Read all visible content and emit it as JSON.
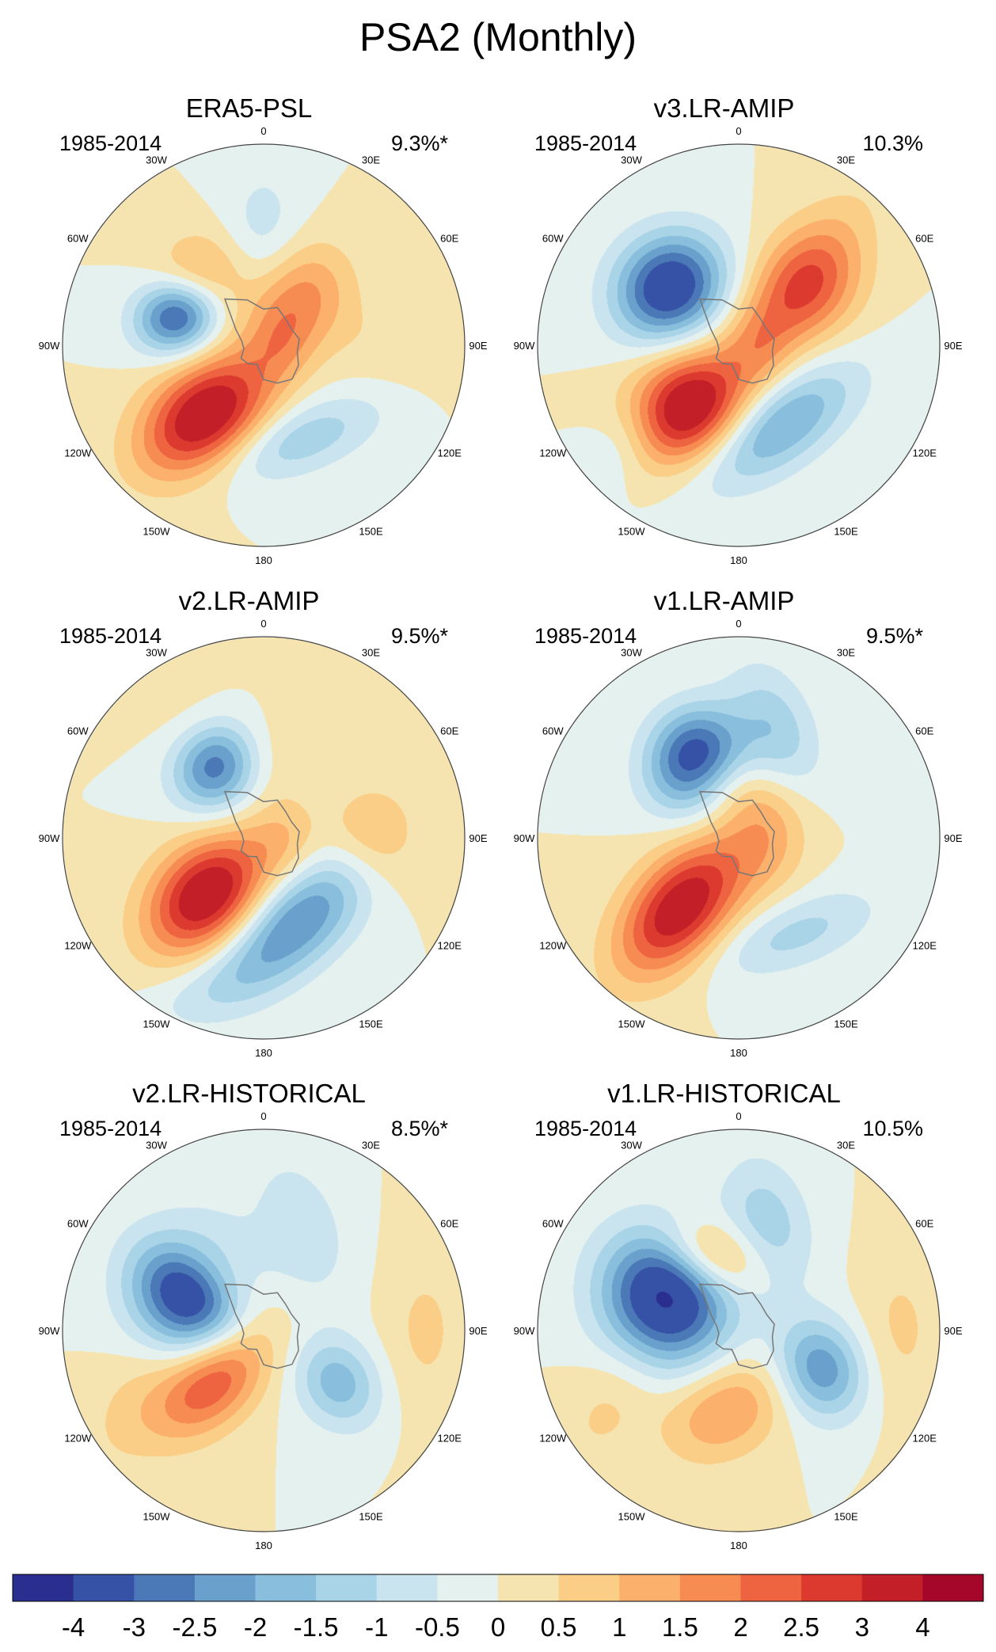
{
  "title": "PSA2 (Monthly)",
  "lon_labels": [
    "0",
    "30E",
    "60E",
    "90E",
    "120E",
    "150E",
    "180",
    "150W",
    "120W",
    "90W",
    "60W",
    "30W"
  ],
  "panels": [
    {
      "title": "ERA5-PSL",
      "period": "1985-2014",
      "percent": "9.3%*",
      "blobs": [
        {
          "lon": 35,
          "r": 0.3,
          "a": 0.2,
          "b": 0.17,
          "v": 1.7,
          "rot": 20
        },
        {
          "lon": 0,
          "r": 0.55,
          "a": 0.25,
          "b": 0.14,
          "v": -0.8,
          "rot": 90
        },
        {
          "lon": 315,
          "r": 0.45,
          "a": 0.16,
          "b": 0.16,
          "v": 1.6,
          "rot": 0
        },
        {
          "lon": 80,
          "r": 0.08,
          "a": 0.14,
          "b": 0.11,
          "v": 0.8,
          "rot": 0
        },
        {
          "lon": 290,
          "r": 0.45,
          "a": 0.15,
          "b": 0.13,
          "v": -3.6,
          "rot": 90
        },
        {
          "lon": 220,
          "r": 0.45,
          "a": 0.26,
          "b": 0.17,
          "v": 3.8,
          "rot": 0
        },
        {
          "lon": 160,
          "r": 0.5,
          "a": 0.3,
          "b": 0.12,
          "v": -1.4,
          "rot": 40
        },
        {
          "lon": 90,
          "r": 0.7,
          "a": 0.3,
          "b": 0.15,
          "v": 0.4,
          "rot": 80
        }
      ]
    },
    {
      "title": "v3.LR-AMIP",
      "period": "1985-2014",
      "percent": "10.3%",
      "blobs": [
        {
          "lon": 45,
          "r": 0.45,
          "a": 0.35,
          "b": 0.15,
          "v": 1.2,
          "rot": 10
        },
        {
          "lon": 50,
          "r": 0.45,
          "a": 0.2,
          "b": 0.18,
          "v": 1.6,
          "rot": 0
        },
        {
          "lon": 310,
          "r": 0.45,
          "a": 0.2,
          "b": 0.18,
          "v": -3.8,
          "rot": 90
        },
        {
          "lon": 220,
          "r": 0.4,
          "a": 0.22,
          "b": 0.18,
          "v": 3.9,
          "rot": 0
        },
        {
          "lon": 155,
          "r": 0.45,
          "a": 0.32,
          "b": 0.14,
          "v": -2.2,
          "rot": 60
        },
        {
          "lon": 230,
          "r": 0.75,
          "a": 0.2,
          "b": 0.12,
          "v": -0.7,
          "rot": 0
        },
        {
          "lon": 90,
          "r": 0.1,
          "a": 0.15,
          "b": 0.12,
          "v": 0.8,
          "rot": 0
        }
      ]
    },
    {
      "title": "v2.LR-AMIP",
      "period": "1985-2014",
      "percent": "9.5%*",
      "blobs": [
        {
          "lon": 340,
          "r": 0.5,
          "a": 0.2,
          "b": 0.16,
          "v": 1.6,
          "rot": 0
        },
        {
          "lon": 330,
          "r": 0.45,
          "a": 0.17,
          "b": 0.15,
          "v": -3.9,
          "rot": 90
        },
        {
          "lon": 225,
          "r": 0.4,
          "a": 0.24,
          "b": 0.17,
          "v": 3.8,
          "rot": 0
        },
        {
          "lon": 160,
          "r": 0.45,
          "a": 0.32,
          "b": 0.15,
          "v": -2.6,
          "rot": 60
        },
        {
          "lon": 90,
          "r": 0.55,
          "a": 0.18,
          "b": 0.16,
          "v": 1.2,
          "rot": 0
        },
        {
          "lon": 90,
          "r": 0.1,
          "a": 0.15,
          "b": 0.12,
          "v": 0.7,
          "rot": 0
        },
        {
          "lon": 200,
          "r": 0.8,
          "a": 0.25,
          "b": 0.12,
          "v": -0.6,
          "rot": 0
        }
      ]
    },
    {
      "title": "v1.LR-AMIP",
      "period": "1985-2014",
      "percent": "9.5%*",
      "blobs": [
        {
          "lon": 20,
          "r": 0.55,
          "a": 0.25,
          "b": 0.14,
          "v": -1.4,
          "rot": 90
        },
        {
          "lon": 330,
          "r": 0.45,
          "a": 0.18,
          "b": 0.16,
          "v": -3.8,
          "rot": 90
        },
        {
          "lon": 220,
          "r": 0.45,
          "a": 0.28,
          "b": 0.16,
          "v": 3.6,
          "rot": 10
        },
        {
          "lon": 150,
          "r": 0.55,
          "a": 0.3,
          "b": 0.12,
          "v": -1.2,
          "rot": 50
        },
        {
          "lon": 80,
          "r": 0.15,
          "a": 0.22,
          "b": 0.15,
          "v": 1.1,
          "rot": 0
        },
        {
          "lon": 340,
          "r": 0.3,
          "a": 0.2,
          "b": 0.12,
          "v": 0.8,
          "rot": 0
        }
      ]
    },
    {
      "title": "v2.LR-HISTORICAL",
      "period": "1985-2014",
      "percent": "8.5%*",
      "blobs": [
        {
          "lon": 20,
          "r": 0.55,
          "a": 0.26,
          "b": 0.15,
          "v": -0.9,
          "rot": 90
        },
        {
          "lon": 320,
          "r": 0.4,
          "a": 0.2,
          "b": 0.12,
          "v": 1.5,
          "rot": 0
        },
        {
          "lon": 300,
          "r": 0.42,
          "a": 0.2,
          "b": 0.22,
          "v": -4.2,
          "rot": 90
        },
        {
          "lon": 225,
          "r": 0.35,
          "a": 0.24,
          "b": 0.14,
          "v": 2.6,
          "rot": 0
        },
        {
          "lon": 125,
          "r": 0.45,
          "a": 0.17,
          "b": 0.14,
          "v": -1.8,
          "rot": 0
        },
        {
          "lon": 90,
          "r": 0.8,
          "a": 0.3,
          "b": 0.15,
          "v": 0.6,
          "rot": 0
        },
        {
          "lon": 240,
          "r": 0.75,
          "a": 0.25,
          "b": 0.15,
          "v": 0.6,
          "rot": 0
        }
      ]
    },
    {
      "title": "v1.LR-HISTORICAL",
      "period": "1985-2014",
      "percent": "10.5%",
      "blobs": [
        {
          "lon": 15,
          "r": 0.55,
          "a": 0.24,
          "b": 0.15,
          "v": -1.3,
          "rot": 90
        },
        {
          "lon": 340,
          "r": 0.4,
          "a": 0.18,
          "b": 0.12,
          "v": 2.0,
          "rot": 0
        },
        {
          "lon": 295,
          "r": 0.4,
          "a": 0.22,
          "b": 0.24,
          "v": -4.2,
          "rot": 90
        },
        {
          "lon": 190,
          "r": 0.4,
          "a": 0.22,
          "b": 0.16,
          "v": 1.6,
          "rot": 20
        },
        {
          "lon": 115,
          "r": 0.45,
          "a": 0.18,
          "b": 0.15,
          "v": -2.4,
          "rot": 0
        },
        {
          "lon": 90,
          "r": 0.8,
          "a": 0.3,
          "b": 0.15,
          "v": 0.6,
          "rot": 0
        },
        {
          "lon": 240,
          "r": 0.75,
          "a": 0.25,
          "b": 0.15,
          "v": 0.6,
          "rot": 0
        }
      ]
    }
  ],
  "colorbar": {
    "colors": [
      "#2a2f8f",
      "#3652a6",
      "#4b78b6",
      "#6aa1cc",
      "#89bfdc",
      "#a9d4e8",
      "#c9e4ef",
      "#e5f1ee",
      "#f5e4b0",
      "#fbce88",
      "#fbb06c",
      "#f78c52",
      "#ee6340",
      "#dc3a2e",
      "#c31f28",
      "#a5072a"
    ],
    "labels": [
      "-4",
      "-3",
      "-2.5",
      "-2",
      "-1.5",
      "-1",
      "-0.5",
      "0",
      "0.5",
      "1",
      "1.5",
      "2",
      "2.5",
      "3",
      "4"
    ],
    "thresholds": [
      -4,
      -3,
      -2.5,
      -2,
      -1.5,
      -1,
      -0.5,
      0,
      0.5,
      1,
      1.5,
      2,
      2.5,
      3,
      4
    ]
  }
}
